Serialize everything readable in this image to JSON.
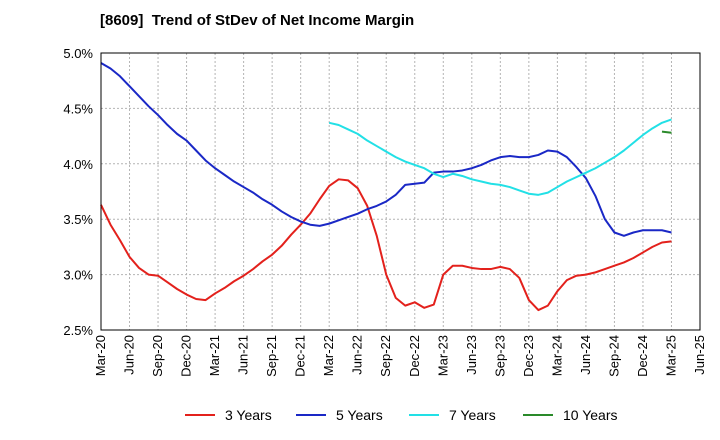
{
  "title": "[8609]  Trend of StDev of Net Income Margin",
  "legend": [
    "3 Years",
    "5 Years",
    "7 Years",
    "10 Years"
  ],
  "chart_data": {
    "type": "line",
    "title": "[8609]  Trend of StDev of Net Income Margin",
    "xlabel": "",
    "ylabel": "",
    "ylim": [
      2.5,
      5.0
    ],
    "y_ticks": [
      "2.5%",
      "3.0%",
      "3.5%",
      "4.0%",
      "4.5%",
      "5.0%"
    ],
    "y_tick_values": [
      2.5,
      3.0,
      3.5,
      4.0,
      4.5,
      5.0
    ],
    "x_ticks": [
      "Mar-20",
      "Jun-20",
      "Sep-20",
      "Dec-20",
      "Mar-21",
      "Jun-21",
      "Sep-21",
      "Dec-21",
      "Mar-22",
      "Jun-22",
      "Sep-22",
      "Dec-22",
      "Mar-23",
      "Jun-23",
      "Sep-23",
      "Dec-23",
      "Mar-24",
      "Jun-24",
      "Sep-24",
      "Dec-24",
      "Mar-25",
      "Jun-25"
    ],
    "x_months": [
      "2020-03",
      "2020-04",
      "2020-05",
      "2020-06",
      "2020-07",
      "2020-08",
      "2020-09",
      "2020-10",
      "2020-11",
      "2020-12",
      "2021-01",
      "2021-02",
      "2021-03",
      "2021-04",
      "2021-05",
      "2021-06",
      "2021-07",
      "2021-08",
      "2021-09",
      "2021-10",
      "2021-11",
      "2021-12",
      "2022-01",
      "2022-02",
      "2022-03",
      "2022-04",
      "2022-05",
      "2022-06",
      "2022-07",
      "2022-08",
      "2022-09",
      "2022-10",
      "2022-11",
      "2022-12",
      "2023-01",
      "2023-02",
      "2023-03",
      "2023-04",
      "2023-05",
      "2023-06",
      "2023-07",
      "2023-08",
      "2023-09",
      "2023-10",
      "2023-11",
      "2023-12",
      "2024-01",
      "2024-02",
      "2024-03",
      "2024-04",
      "2024-05",
      "2024-06",
      "2024-07",
      "2024-08",
      "2024-09",
      "2024-10",
      "2024-11",
      "2024-12",
      "2025-01",
      "2025-02",
      "2025-03"
    ],
    "grid": true,
    "legend_position": "bottom",
    "series": [
      {
        "name": "3 Years",
        "color": "#e3211c",
        "values": [
          3.63,
          3.45,
          3.31,
          3.16,
          3.06,
          3.0,
          2.99,
          2.93,
          2.87,
          2.82,
          2.78,
          2.77,
          2.83,
          2.88,
          2.94,
          2.99,
          3.05,
          3.12,
          3.18,
          3.26,
          3.36,
          3.45,
          3.55,
          3.68,
          3.8,
          3.86,
          3.85,
          3.78,
          3.62,
          3.35,
          3.0,
          2.79,
          2.72,
          2.75,
          2.7,
          2.73,
          3.0,
          3.08,
          3.08,
          3.06,
          3.05,
          3.05,
          3.07,
          3.05,
          2.97,
          2.77,
          2.68,
          2.72,
          2.85,
          2.95,
          2.99,
          3.0,
          3.02,
          3.05,
          3.08,
          3.11,
          3.15,
          3.2,
          3.25,
          3.29,
          3.3
        ]
      },
      {
        "name": "5 Years",
        "color": "#1a28c6",
        "values": [
          4.91,
          4.86,
          4.79,
          4.7,
          4.61,
          4.52,
          4.44,
          4.35,
          4.27,
          4.21,
          4.12,
          4.03,
          3.96,
          3.9,
          3.84,
          3.79,
          3.74,
          3.68,
          3.63,
          3.57,
          3.52,
          3.48,
          3.45,
          3.44,
          3.46,
          3.49,
          3.52,
          3.55,
          3.59,
          3.62,
          3.66,
          3.72,
          3.81,
          3.82,
          3.83,
          3.92,
          3.93,
          3.93,
          3.94,
          3.96,
          3.99,
          4.03,
          4.06,
          4.07,
          4.06,
          4.06,
          4.08,
          4.12,
          4.11,
          4.06,
          3.97,
          3.87,
          3.71,
          3.5,
          3.38,
          3.35,
          3.38,
          3.4,
          3.4,
          3.4,
          3.38
        ]
      },
      {
        "name": "7 Years",
        "color": "#22e0e6",
        "values": [
          null,
          null,
          null,
          null,
          null,
          null,
          null,
          null,
          null,
          null,
          null,
          null,
          null,
          null,
          null,
          null,
          null,
          null,
          null,
          null,
          null,
          null,
          null,
          null,
          4.37,
          4.35,
          4.31,
          4.27,
          4.21,
          4.16,
          4.11,
          4.06,
          4.02,
          3.99,
          3.96,
          3.91,
          3.88,
          3.91,
          3.89,
          3.86,
          3.84,
          3.82,
          3.81,
          3.79,
          3.76,
          3.73,
          3.72,
          3.74,
          3.79,
          3.84,
          3.88,
          3.92,
          3.96,
          4.01,
          4.06,
          4.12,
          4.19,
          4.26,
          4.32,
          4.37,
          4.4
        ]
      },
      {
        "name": "10 Years",
        "color": "#2a8a2a",
        "values": [
          null,
          null,
          null,
          null,
          null,
          null,
          null,
          null,
          null,
          null,
          null,
          null,
          null,
          null,
          null,
          null,
          null,
          null,
          null,
          null,
          null,
          null,
          null,
          null,
          null,
          null,
          null,
          null,
          null,
          null,
          null,
          null,
          null,
          null,
          null,
          null,
          null,
          null,
          null,
          null,
          null,
          null,
          null,
          null,
          null,
          null,
          null,
          null,
          null,
          null,
          null,
          null,
          null,
          null,
          null,
          null,
          null,
          null,
          null,
          4.29,
          4.28
        ]
      }
    ]
  }
}
